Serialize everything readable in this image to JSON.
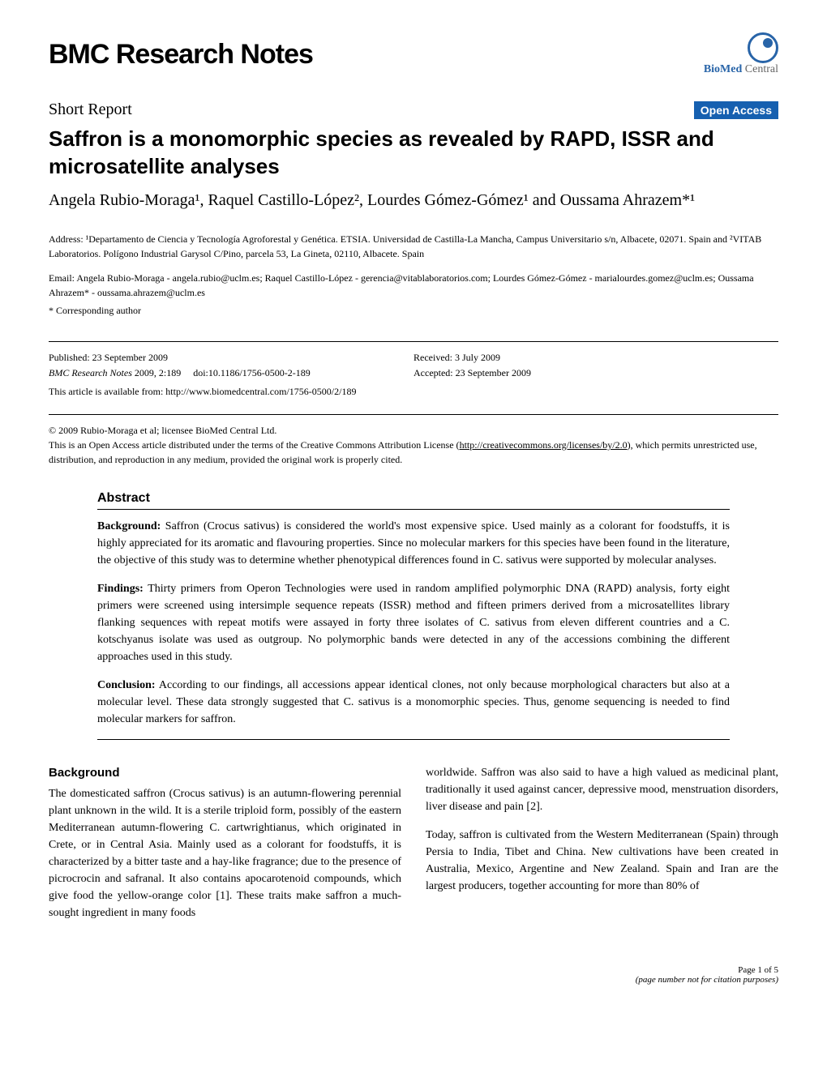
{
  "header": {
    "journal_name": "BMC Research Notes",
    "publisher_brand": "BioMed",
    "publisher_suffix": "Central"
  },
  "article_meta": {
    "article_type": "Short Report",
    "open_access_label": "Open Access",
    "title": "Saffron is a monomorphic species as revealed by RAPD, ISSR and microsatellite analyses",
    "authors_html": "Angela Rubio-Moraga¹, Raquel Castillo-López², Lourdes Gómez-Gómez¹ and Oussama Ahrazem*¹",
    "affiliations": "Address: ¹Departamento de Ciencia y Tecnología Agroforestal y Genética. ETSIA. Universidad de Castilla-La Mancha, Campus Universitario s/n, Albacete, 02071. Spain and ²VITAB Laboratorios. Polígono Industrial Garysol C/Pino, parcela 53, La Gineta, 02110, Albacete. Spain",
    "emails": "Email: Angela Rubio-Moraga - angela.rubio@uclm.es; Raquel Castillo-López - gerencia@vitablaboratorios.com; Lourdes Gómez-Gómez - marialourdes.gomez@uclm.es; Oussama Ahrazem* - oussama.ahrazem@uclm.es",
    "corresponding_note": "* Corresponding author"
  },
  "dates": {
    "published": "Published: 23 September 2009",
    "received": "Received: 3 July 2009",
    "accepted": "Accepted: 23 September 2009",
    "citation_journal": "BMC Research Notes",
    "citation_year_vol": "2009, 2:189",
    "citation_doi": "doi:10.1186/1756-0500-2-189",
    "article_url_label": "This article is available from: http://www.biomedcentral.com/1756-0500/2/189",
    "copyright_line1": "© 2009 Rubio-Moraga et al; licensee BioMed Central Ltd.",
    "copyright_line2": "This is an Open Access article distributed under the terms of the Creative Commons Attribution License (",
    "copyright_license_link": "http://creativecommons.org/licenses/by/2.0",
    "copyright_line3": "), which permits unrestricted use, distribution, and reproduction in any medium, provided the original work is properly cited."
  },
  "abstract": {
    "heading": "Abstract",
    "background_label": "Background:",
    "background_text": " Saffron (Crocus sativus) is considered the world's most expensive spice. Used mainly as a colorant for foodstuffs, it is highly appreciated for its aromatic and flavouring properties. Since no molecular markers for this species have been found in the literature, the objective of this study was to determine whether phenotypical differences found in C. sativus were supported by molecular analyses.",
    "findings_label": "Findings:",
    "findings_text": " Thirty primers from Operon Technologies were used in random amplified polymorphic DNA (RAPD) analysis, forty eight primers were screened using intersimple sequence repeats (ISSR) method and fifteen primers derived from a microsatellites library flanking sequences with repeat motifs were assayed in forty three isolates of C. sativus from eleven different countries and a C. kotschyanus isolate was used as outgroup. No polymorphic bands were detected in any of the accessions combining the different approaches used in this study.",
    "conclusion_label": "Conclusion:",
    "conclusion_text": " According to our findings, all accessions appear identical clones, not only because morphological characters but also at a molecular level. These data strongly suggested that C. sativus is a monomorphic species. Thus, genome sequencing is needed to find molecular markers for saffron."
  },
  "body": {
    "section_heading": "Background",
    "left_para": "The domesticated saffron (Crocus sativus) is an autumn-flowering perennial plant unknown in the wild. It is a sterile triploid form, possibly of the eastern Mediterranean autumn-flowering C. cartwrightianus, which originated in Crete, or in Central Asia. Mainly used as a colorant for foodstuffs, it is characterized by a bitter taste and a hay-like fragrance; due to the presence of picrocrocin and safranal. It also contains apocarotenoid compounds, which give food the yellow-orange color [1]. These traits make saffron a much-sought ingredient in many foods",
    "right_para1": "worldwide. Saffron was also said to have a high valued as medicinal plant, traditionally it used against cancer, depressive mood, menstruation disorders, liver disease and pain [2].",
    "right_para2": "Today, saffron is cultivated from the Western Mediterranean (Spain) through Persia to India, Tibet and China. New cultivations have been created in Australia, Mexico, Argentine and New Zealand. Spain and Iran are the largest producers, together accounting for more than 80% of"
  },
  "footer": {
    "page_label": "Page 1 of 5",
    "page_note": "(page number not for citation purposes)"
  },
  "colors": {
    "open_access_bg": "#1660b0",
    "open_access_text": "#ffffff",
    "biomed_blue": "#2864a8",
    "text_color": "#000000",
    "background": "#ffffff"
  }
}
